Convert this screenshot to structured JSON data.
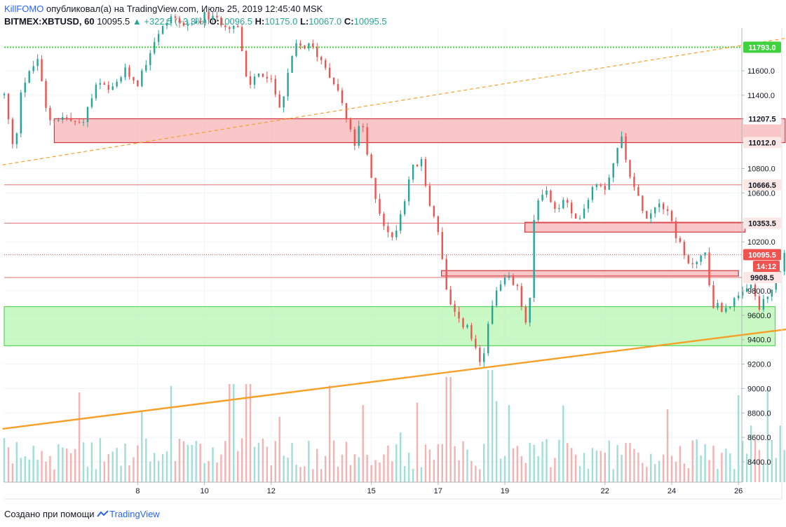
{
  "header": {
    "author": "KillFOMO",
    "published_text": "опубликовал(а) на TradingView.com, Июль 25, 2019 12:45:40 MSK",
    "symbol": "BITMEX:XBTUSD, 60",
    "last": "10095.5",
    "change": "+322.5 (+3.3%)",
    "open_label": "O:",
    "open": "10096.5",
    "high_label": "H:",
    "high": "10175.0",
    "low_label": "L:",
    "low": "10067.0",
    "close_label": "C:",
    "close": "10095.5"
  },
  "footer": {
    "created_with": "Создано при помощи",
    "brand": "TradingView"
  },
  "colors": {
    "up": "#26a69a",
    "down": "#ef5350",
    "resistance_zone": "#f8b9b9",
    "support_zone": "#b7f5b0",
    "trendline": "#f7a028",
    "level_green": "#3fd23f"
  },
  "chart_data": {
    "type": "candlestick",
    "symbol": "BITMEX:XBTUSD",
    "interval": "60",
    "y_range": [
      8250,
      11950
    ],
    "y_ticks": [
      8400,
      8600,
      8800,
      9000,
      9200,
      9400,
      9600,
      9800,
      10200,
      10600,
      10800,
      11400,
      11600
    ],
    "x_ticks": [
      {
        "label": "8",
        "day": 8
      },
      {
        "label": "10",
        "day": 10
      },
      {
        "label": "12",
        "day": 12
      },
      {
        "label": "15",
        "day": 15
      },
      {
        "label": "17",
        "day": 17
      },
      {
        "label": "19",
        "day": 19
      },
      {
        "label": "22",
        "day": 22
      },
      {
        "label": "24",
        "day": 24
      },
      {
        "label": "26",
        "day": 26
      }
    ],
    "price_tags": [
      {
        "label": "11793.0",
        "price": 11793,
        "style": "green"
      },
      {
        "label": "11207.5",
        "price": 11207.5,
        "style": "plain"
      },
      {
        "label": "11012.0",
        "price": 11012,
        "style": "red"
      },
      {
        "label": "10666.5",
        "price": 10666.5,
        "style": "red"
      },
      {
        "label": "10353.5",
        "price": 10353.5,
        "style": "red"
      },
      {
        "label": "10095.5",
        "price": 10095.5,
        "style": "red"
      },
      {
        "label": "14:12",
        "price": 10000,
        "style": "red"
      },
      {
        "label": "9908.5",
        "price": 9908.5,
        "style": "red"
      }
    ],
    "zones": [
      {
        "type": "resistance",
        "from_day": 5.5,
        "to_day": 27.4,
        "low": 11012,
        "high": 11207.5
      },
      {
        "type": "resistance",
        "from_day": 19.6,
        "to_day": 26.2,
        "low": 10280,
        "high": 10360
      },
      {
        "type": "resistance",
        "from_day": 17.1,
        "to_day": 26.0,
        "low": 9920,
        "high": 9965
      },
      {
        "type": "support",
        "from_day": 4.0,
        "to_day": 27.1,
        "low": 9350,
        "high": 9670
      }
    ],
    "levels": [
      {
        "price": 11793,
        "style": "green-dotted"
      },
      {
        "price": 10666.5,
        "style": "red-thin"
      },
      {
        "price": 10353.5,
        "style": "red-thin"
      },
      {
        "price": 10095.5,
        "style": "red-dotted"
      },
      {
        "price": 9908.5,
        "style": "red-thin"
      }
    ],
    "trendlines": [
      {
        "from": {
          "day": 3.95,
          "price": 8670
        },
        "to": {
          "day": 27.6,
          "price": 9490
        },
        "style": "solid"
      },
      {
        "from": {
          "day": 3.95,
          "price": 10830
        },
        "to": {
          "day": 27.5,
          "price": 11870
        },
        "style": "dashed"
      }
    ],
    "path": [
      [
        4.0,
        11400
      ],
      [
        4.3,
        10900
      ],
      [
        4.5,
        11450
      ],
      [
        5.0,
        11700
      ],
      [
        5.3,
        11200
      ],
      [
        5.8,
        11220
      ],
      [
        6.3,
        11150
      ],
      [
        6.8,
        11500
      ],
      [
        7.2,
        11420
      ],
      [
        7.6,
        11600
      ],
      [
        8.0,
        11500
      ],
      [
        8.5,
        11850
      ],
      [
        9.0,
        12050
      ],
      [
        9.5,
        11950
      ],
      [
        10.0,
        12050
      ],
      [
        10.5,
        12000
      ],
      [
        11.0,
        11950
      ],
      [
        11.3,
        11450
      ],
      [
        11.6,
        11600
      ],
      [
        12.0,
        11500
      ],
      [
        12.3,
        11300
      ],
      [
        12.7,
        11800
      ],
      [
        13.2,
        11800
      ],
      [
        13.6,
        11650
      ],
      [
        14.0,
        11450
      ],
      [
        14.3,
        11150
      ],
      [
        14.5,
        11000
      ],
      [
        14.7,
        11200
      ],
      [
        15.0,
        10700
      ],
      [
        15.3,
        10400
      ],
      [
        15.6,
        10200
      ],
      [
        15.9,
        10450
      ],
      [
        16.2,
        10800
      ],
      [
        16.5,
        10850
      ],
      [
        16.7,
        10550
      ],
      [
        17.0,
        10300
      ],
      [
        17.3,
        9700
      ],
      [
        17.6,
        9550
      ],
      [
        17.9,
        9500
      ],
      [
        18.3,
        9150
      ],
      [
        18.6,
        9700
      ],
      [
        18.9,
        9850
      ],
      [
        19.1,
        9900
      ],
      [
        19.4,
        9800
      ],
      [
        19.7,
        9450
      ],
      [
        19.9,
        10500
      ],
      [
        20.2,
        10650
      ],
      [
        20.5,
        10450
      ],
      [
        20.8,
        10550
      ],
      [
        21.1,
        10350
      ],
      [
        21.4,
        10500
      ],
      [
        21.7,
        10700
      ],
      [
        22.0,
        10650
      ],
      [
        22.3,
        10900
      ],
      [
        22.5,
        11050
      ],
      [
        22.8,
        10700
      ],
      [
        23.0,
        10550
      ],
      [
        23.3,
        10400
      ],
      [
        23.6,
        10550
      ],
      [
        23.9,
        10450
      ],
      [
        24.2,
        10200
      ],
      [
        24.5,
        10000
      ],
      [
        24.7,
        10050
      ],
      [
        25.0,
        10100
      ],
      [
        25.2,
        9700
      ],
      [
        25.5,
        9650
      ],
      [
        25.8,
        9700
      ],
      [
        26.1,
        9750
      ],
      [
        26.4,
        9850
      ],
      [
        26.6,
        9650
      ],
      [
        26.9,
        9750
      ],
      [
        27.2,
        9900
      ],
      [
        27.4,
        10130
      ],
      [
        27.6,
        10100
      ],
      [
        27.8,
        10095
      ]
    ],
    "last_price": 10095.5
  }
}
